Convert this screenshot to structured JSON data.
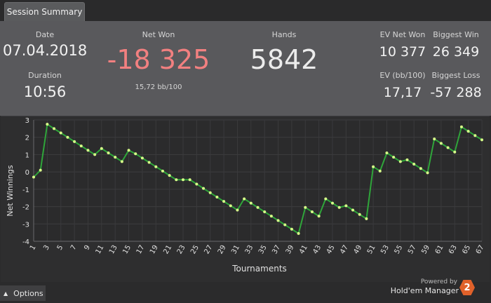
{
  "tab": {
    "label": "Session Summary"
  },
  "summary": {
    "date_label": "Date",
    "date_value": "07.04.2018",
    "duration_label": "Duration",
    "duration_value": "10:56",
    "net_won_label": "Net Won",
    "net_won_value": "-18 325",
    "net_won_sub": "15,72 bb/100",
    "hands_label": "Hands",
    "hands_value": "5842",
    "ev_net_won_label": "EV Net Won",
    "ev_net_won_value": "10 377",
    "biggest_win_label": "Biggest Win",
    "biggest_win_value": "26 349",
    "ev_bb100_label": "EV (bb/100)",
    "ev_bb100_value": "17,17",
    "biggest_loss_label": "Biggest Loss",
    "biggest_loss_value": "-57 288",
    "negative_color": "#f28080"
  },
  "chart_data": {
    "type": "line",
    "xlabel": "Tournaments",
    "ylabel": "Net Winnings",
    "xlim": [
      1,
      67
    ],
    "ylim": [
      -4,
      3
    ],
    "yticks": [
      3,
      2,
      1,
      0,
      -1,
      -2,
      -3,
      -4
    ],
    "xticks": [
      1,
      3,
      5,
      7,
      9,
      11,
      13,
      15,
      17,
      19,
      21,
      23,
      25,
      27,
      29,
      31,
      33,
      35,
      37,
      39,
      41,
      43,
      45,
      47,
      49,
      51,
      53,
      55,
      57,
      59,
      61,
      63,
      65,
      67
    ],
    "grid": true,
    "line_color": "#2fa53a",
    "point_color": "#d8ff8a",
    "series": [
      {
        "x": [
          1,
          2,
          3,
          4,
          5,
          6,
          7,
          8,
          9,
          10,
          11,
          12,
          13,
          14,
          15,
          16,
          17,
          18,
          19,
          20,
          21,
          22,
          23,
          24,
          25,
          26,
          27,
          28,
          29,
          30,
          31,
          32,
          33,
          34,
          35,
          36,
          37,
          38,
          39,
          40,
          41,
          42,
          43,
          44,
          45,
          46,
          47,
          48,
          49,
          50,
          51,
          52,
          53,
          54,
          55,
          56,
          57,
          58,
          59,
          60,
          61,
          62,
          63,
          64,
          65,
          66,
          67
        ],
        "values": [
          -0.3,
          0.1,
          2.75,
          2.5,
          2.25,
          2.0,
          1.75,
          1.5,
          1.25,
          1.0,
          1.35,
          1.1,
          0.85,
          0.6,
          1.25,
          1.05,
          0.8,
          0.55,
          0.3,
          0.05,
          -0.2,
          -0.45,
          -0.45,
          -0.45,
          -0.7,
          -0.95,
          -1.2,
          -1.45,
          -1.7,
          -1.95,
          -2.2,
          -1.55,
          -1.8,
          -2.05,
          -2.3,
          -2.55,
          -2.8,
          -3.05,
          -3.3,
          -3.55,
          -2.05,
          -2.3,
          -2.55,
          -1.55,
          -1.8,
          -2.05,
          -1.95,
          -2.2,
          -2.45,
          -2.7,
          0.3,
          0.05,
          1.1,
          0.85,
          0.6,
          0.7,
          0.45,
          0.2,
          -0.05,
          1.9,
          1.65,
          1.4,
          1.15,
          2.6,
          2.35,
          2.1,
          1.85
        ]
      }
    ]
  },
  "footer": {
    "options_label": "Options",
    "powered_by": "Powered by",
    "brand": "Hold'em Manager",
    "logo_text": "2"
  }
}
